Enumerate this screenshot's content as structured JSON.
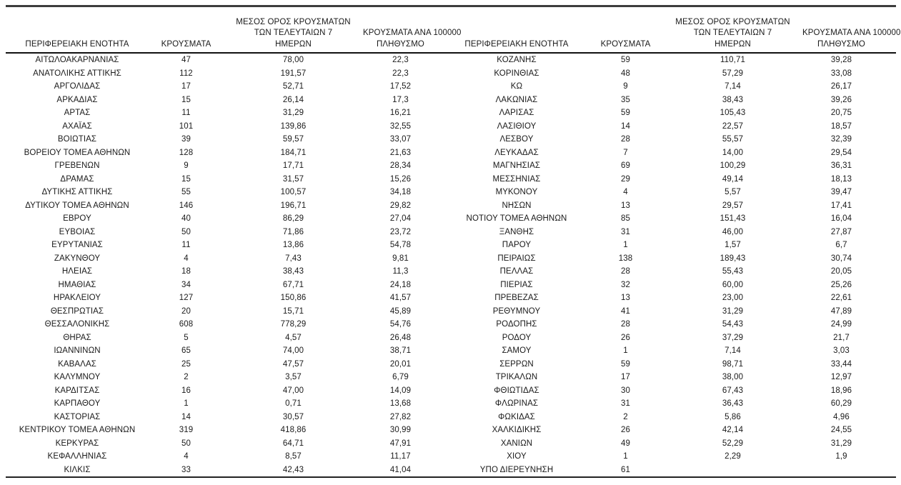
{
  "page": {
    "background_color": "#ffffff",
    "text_color": "#1a1a1a",
    "rule_color": "#222222"
  },
  "table": {
    "headers": {
      "region": "ΠΕΡΙΦΕΡΕΙΑΚΗ ΕΝΟΤΗΤΑ",
      "cases": "ΚΡΟΥΣΜΑΤΑ",
      "avg7_line1": "ΜΕΣΟΣ ΟΡΟΣ ΚΡΟΥΣΜΑΤΩΝ",
      "avg7_line2": "ΤΩΝ ΤΕΛΕΥΤΑΙΩΝ 7",
      "avg7_line3": "ΗΜΕΡΩΝ",
      "per100k_line1": "ΚΡΟΥΣΜΑΤΑ ΑΝΑ 100000",
      "per100k_line2": "ΠΛΗΘΥΣΜΟ"
    },
    "left_rows": [
      {
        "region": "ΑΙΤΩΛΟΑΚΑΡΝΑΝΙΑΣ",
        "cases": "47",
        "avg7": "78,00",
        "per100k": "22,3"
      },
      {
        "region": "ΑΝΑΤΟΛΙΚΗΣ ΑΤΤΙΚΗΣ",
        "cases": "112",
        "avg7": "191,57",
        "per100k": "22,3"
      },
      {
        "region": "ΑΡΓΟΛΙΔΑΣ",
        "cases": "17",
        "avg7": "52,71",
        "per100k": "17,52"
      },
      {
        "region": "ΑΡΚΑΔΙΑΣ",
        "cases": "15",
        "avg7": "26,14",
        "per100k": "17,3"
      },
      {
        "region": "ΑΡΤΑΣ",
        "cases": "11",
        "avg7": "31,29",
        "per100k": "16,21"
      },
      {
        "region": "ΑΧΑΪΑΣ",
        "cases": "101",
        "avg7": "139,86",
        "per100k": "32,55"
      },
      {
        "region": "ΒΟΙΩΤΙΑΣ",
        "cases": "39",
        "avg7": "59,57",
        "per100k": "33,07"
      },
      {
        "region": "ΒΟΡΕΙΟΥ ΤΟΜΕΑ ΑΘΗΝΩΝ",
        "cases": "128",
        "avg7": "184,71",
        "per100k": "21,63"
      },
      {
        "region": "ΓΡΕΒΕΝΩΝ",
        "cases": "9",
        "avg7": "17,71",
        "per100k": "28,34"
      },
      {
        "region": "ΔΡΑΜΑΣ",
        "cases": "15",
        "avg7": "31,57",
        "per100k": "15,26"
      },
      {
        "region": "ΔΥΤΙΚΗΣ ΑΤΤΙΚΗΣ",
        "cases": "55",
        "avg7": "100,57",
        "per100k": "34,18"
      },
      {
        "region": "ΔΥΤΙΚΟΥ ΤΟΜΕΑ ΑΘΗΝΩΝ",
        "cases": "146",
        "avg7": "196,71",
        "per100k": "29,82"
      },
      {
        "region": "ΕΒΡΟΥ",
        "cases": "40",
        "avg7": "86,29",
        "per100k": "27,04"
      },
      {
        "region": "ΕΥΒΟΙΑΣ",
        "cases": "50",
        "avg7": "71,86",
        "per100k": "23,72"
      },
      {
        "region": "ΕΥΡΥΤΑΝΙΑΣ",
        "cases": "11",
        "avg7": "13,86",
        "per100k": "54,78"
      },
      {
        "region": "ΖΑΚΥΝΘΟΥ",
        "cases": "4",
        "avg7": "7,43",
        "per100k": "9,81"
      },
      {
        "region": "ΗΛΕΙΑΣ",
        "cases": "18",
        "avg7": "38,43",
        "per100k": "11,3"
      },
      {
        "region": "ΗΜΑΘΙΑΣ",
        "cases": "34",
        "avg7": "67,71",
        "per100k": "24,18"
      },
      {
        "region": "ΗΡΑΚΛΕΙΟΥ",
        "cases": "127",
        "avg7": "150,86",
        "per100k": "41,57"
      },
      {
        "region": "ΘΕΣΠΡΩΤΙΑΣ",
        "cases": "20",
        "avg7": "15,71",
        "per100k": "45,89"
      },
      {
        "region": "ΘΕΣΣΑΛΟΝΙΚΗΣ",
        "cases": "608",
        "avg7": "778,29",
        "per100k": "54,76"
      },
      {
        "region": "ΘΗΡΑΣ",
        "cases": "5",
        "avg7": "4,57",
        "per100k": "26,48"
      },
      {
        "region": "ΙΩΑΝΝΙΝΩΝ",
        "cases": "65",
        "avg7": "74,00",
        "per100k": "38,71"
      },
      {
        "region": "ΚΑΒΑΛΑΣ",
        "cases": "25",
        "avg7": "47,57",
        "per100k": "20,01"
      },
      {
        "region": "ΚΑΛΥΜΝΟΥ",
        "cases": "2",
        "avg7": "3,57",
        "per100k": "6,79"
      },
      {
        "region": "ΚΑΡΔΙΤΣΑΣ",
        "cases": "16",
        "avg7": "47,00",
        "per100k": "14,09"
      },
      {
        "region": "ΚΑΡΠΑΘΟΥ",
        "cases": "1",
        "avg7": "0,71",
        "per100k": "13,68"
      },
      {
        "region": "ΚΑΣΤΟΡΙΑΣ",
        "cases": "14",
        "avg7": "30,57",
        "per100k": "27,82"
      },
      {
        "region": "ΚΕΝΤΡΙΚΟΥ ΤΟΜΕΑ ΑΘΗΝΩΝ",
        "cases": "319",
        "avg7": "418,86",
        "per100k": "30,99"
      },
      {
        "region": "ΚΕΡΚΥΡΑΣ",
        "cases": "50",
        "avg7": "64,71",
        "per100k": "47,91"
      },
      {
        "region": "ΚΕΦΑΛΛΗΝΙΑΣ",
        "cases": "4",
        "avg7": "8,57",
        "per100k": "11,17"
      },
      {
        "region": "ΚΙΛΚΙΣ",
        "cases": "33",
        "avg7": "42,43",
        "per100k": "41,04"
      }
    ],
    "right_rows": [
      {
        "region": "ΚΟΖΑΝΗΣ",
        "cases": "59",
        "avg7": "110,71",
        "per100k": "39,28"
      },
      {
        "region": "ΚΟΡΙΝΘΙΑΣ",
        "cases": "48",
        "avg7": "57,29",
        "per100k": "33,08"
      },
      {
        "region": "ΚΩ",
        "cases": "9",
        "avg7": "7,14",
        "per100k": "26,17"
      },
      {
        "region": "ΛΑΚΩΝΙΑΣ",
        "cases": "35",
        "avg7": "38,43",
        "per100k": "39,26"
      },
      {
        "region": "ΛΑΡΙΣΑΣ",
        "cases": "59",
        "avg7": "105,43",
        "per100k": "20,75"
      },
      {
        "region": "ΛΑΣΙΘΙΟΥ",
        "cases": "14",
        "avg7": "22,57",
        "per100k": "18,57"
      },
      {
        "region": "ΛΕΣΒΟΥ",
        "cases": "28",
        "avg7": "55,57",
        "per100k": "32,39"
      },
      {
        "region": "ΛΕΥΚΑΔΑΣ",
        "cases": "7",
        "avg7": "14,00",
        "per100k": "29,54"
      },
      {
        "region": "ΜΑΓΝΗΣΙΑΣ",
        "cases": "69",
        "avg7": "100,29",
        "per100k": "36,31"
      },
      {
        "region": "ΜΕΣΣΗΝΙΑΣ",
        "cases": "29",
        "avg7": "49,14",
        "per100k": "18,13"
      },
      {
        "region": "ΜΥΚΟΝΟΥ",
        "cases": "4",
        "avg7": "5,57",
        "per100k": "39,47"
      },
      {
        "region": "ΝΗΣΩΝ",
        "cases": "13",
        "avg7": "29,57",
        "per100k": "17,41"
      },
      {
        "region": "ΝΟΤΙΟΥ ΤΟΜΕΑ ΑΘΗΝΩΝ",
        "cases": "85",
        "avg7": "151,43",
        "per100k": "16,04"
      },
      {
        "region": "ΞΑΝΘΗΣ",
        "cases": "31",
        "avg7": "46,00",
        "per100k": "27,87"
      },
      {
        "region": "ΠΑΡΟΥ",
        "cases": "1",
        "avg7": "1,57",
        "per100k": "6,7"
      },
      {
        "region": "ΠΕΙΡΑΙΩΣ",
        "cases": "138",
        "avg7": "189,43",
        "per100k": "30,74"
      },
      {
        "region": "ΠΕΛΛΑΣ",
        "cases": "28",
        "avg7": "55,43",
        "per100k": "20,05"
      },
      {
        "region": "ΠΙΕΡΙΑΣ",
        "cases": "32",
        "avg7": "60,00",
        "per100k": "25,26"
      },
      {
        "region": "ΠΡΕΒΕΖΑΣ",
        "cases": "13",
        "avg7": "23,00",
        "per100k": "22,61"
      },
      {
        "region": "ΡΕΘΥΜΝΟΥ",
        "cases": "41",
        "avg7": "31,29",
        "per100k": "47,89"
      },
      {
        "region": "ΡΟΔΟΠΗΣ",
        "cases": "28",
        "avg7": "54,43",
        "per100k": "24,99"
      },
      {
        "region": "ΡΟΔΟΥ",
        "cases": "26",
        "avg7": "37,29",
        "per100k": "21,7"
      },
      {
        "region": "ΣΑΜΟΥ",
        "cases": "1",
        "avg7": "7,14",
        "per100k": "3,03"
      },
      {
        "region": "ΣΕΡΡΩΝ",
        "cases": "59",
        "avg7": "98,71",
        "per100k": "33,44"
      },
      {
        "region": "ΤΡΙΚΑΛΩΝ",
        "cases": "17",
        "avg7": "38,00",
        "per100k": "12,97"
      },
      {
        "region": "ΦΘΙΩΤΙΔΑΣ",
        "cases": "30",
        "avg7": "67,43",
        "per100k": "18,96"
      },
      {
        "region": "ΦΛΩΡΙΝΑΣ",
        "cases": "31",
        "avg7": "36,43",
        "per100k": "60,29"
      },
      {
        "region": "ΦΩΚΙΔΑΣ",
        "cases": "2",
        "avg7": "5,86",
        "per100k": "4,96"
      },
      {
        "region": "ΧΑΛΚΙΔΙΚΗΣ",
        "cases": "26",
        "avg7": "42,14",
        "per100k": "24,55"
      },
      {
        "region": "ΧΑΝΙΩΝ",
        "cases": "49",
        "avg7": "52,29",
        "per100k": "31,29"
      },
      {
        "region": "ΧΙΟΥ",
        "cases": "1",
        "avg7": "2,29",
        "per100k": "1,9"
      },
      {
        "region": "ΥΠΟ ΔΙΕΡΕΥΝΗΣΗ",
        "cases": "61",
        "avg7": "",
        "per100k": ""
      }
    ]
  }
}
